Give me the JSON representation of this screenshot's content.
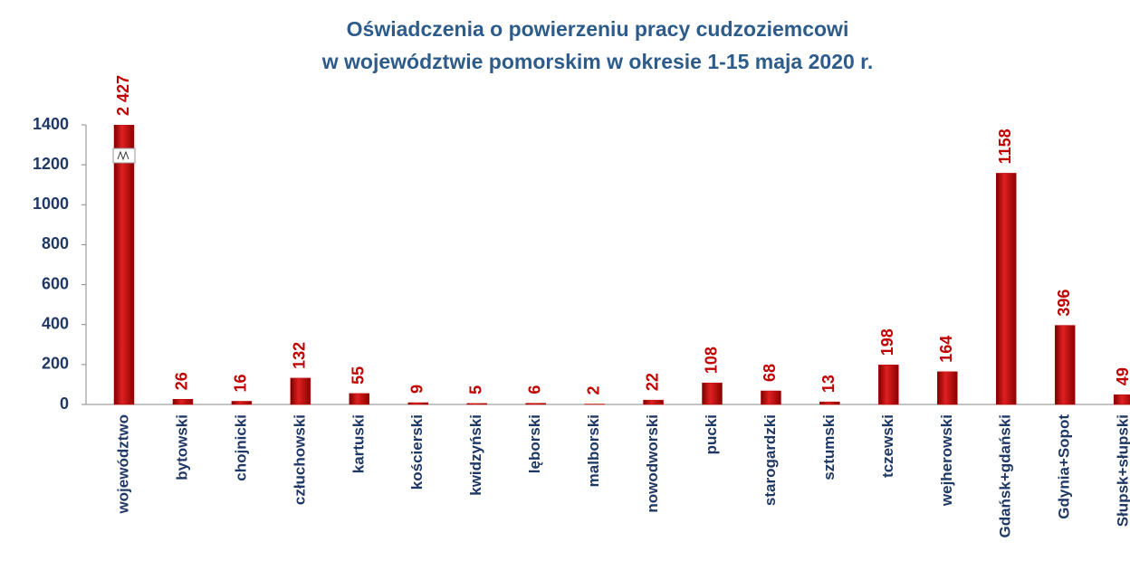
{
  "chart_data": {
    "type": "bar",
    "title": [
      "Oświadczenia o powierzeniu pracy cudzoziemcowi",
      "w województwie pomorskim w okresie 1-15 maja 2020 r."
    ],
    "categories": [
      "województwo",
      "bytowski",
      "chojnicki",
      "człuchowski",
      "kartuski",
      "kościerski",
      "kwidzyński",
      "lęborski",
      "malborski",
      "nowodworski",
      "pucki",
      "starogardzki",
      "sztumski",
      "tczewski",
      "wejherowski",
      "Gdańsk+gdański",
      "Gdynia+Sopot",
      "Słupsk+słupski"
    ],
    "values": [
      2427,
      26,
      16,
      132,
      55,
      9,
      5,
      6,
      2,
      22,
      108,
      68,
      13,
      198,
      164,
      1158,
      396,
      49
    ],
    "value_labels": [
      "2 427",
      "26",
      "16",
      "132",
      "55",
      "9",
      "5",
      "6",
      "2",
      "22",
      "108",
      "68",
      "13",
      "198",
      "164",
      "1158",
      "396",
      "49"
    ],
    "color": "#c00000",
    "ylim": [
      0,
      1400
    ],
    "yticks": [
      0,
      200,
      400,
      600,
      800,
      1000,
      1200,
      1400
    ],
    "grid": false,
    "axis_break": true
  }
}
